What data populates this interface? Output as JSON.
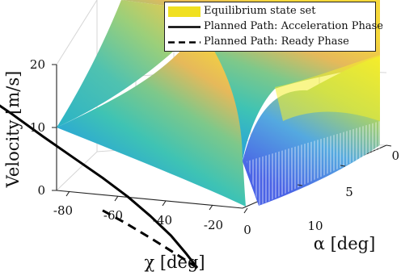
{
  "chart_data": {
    "type": "surface3d",
    "title": "",
    "xlabel": "χ [deg]",
    "ylabel": "α [deg]",
    "zlabel": "Velocity [m/s]",
    "x_ticks": [
      "-80",
      "-60",
      "-40",
      "-20",
      "0"
    ],
    "y_ticks": [
      "0",
      "5",
      "10"
    ],
    "z_ticks": [
      "0",
      "10",
      "20"
    ],
    "xlim": [
      -90,
      0
    ],
    "ylim": [
      0,
      10
    ],
    "zlim": [
      0,
      25
    ],
    "grid": true,
    "legend_position": "top-right",
    "colormap": "parula",
    "legend": [
      {
        "label": "Equilibrium state set",
        "style": "patch",
        "color": "#f0e020"
      },
      {
        "label": "Planned Path: Acceleration Phase",
        "style": "solid",
        "color": "#000000"
      },
      {
        "label": "Planned Path: Ready Phase",
        "style": "dashed",
        "color": "#000000"
      }
    ],
    "series": [
      {
        "name": "Planned Path: Acceleration Phase",
        "style": "solid",
        "x": [
          -72,
          -62,
          -52,
          -44,
          -37,
          -30,
          -25,
          -21,
          -18,
          -16,
          -15
        ],
        "y": [
          0,
          0.6,
          1.4,
          2.4,
          3.4,
          4.6,
          5.6,
          6.6,
          7.6,
          8.4,
          9.0
        ],
        "z": [
          24.5,
          21.0,
          18.0,
          15.2,
          12.8,
          10.3,
          8.2,
          6.0,
          3.8,
          1.6,
          0
        ]
      },
      {
        "name": "Planned Path: Ready Phase",
        "style": "dashed",
        "x": [
          -15,
          -11,
          -7,
          -3,
          0
        ],
        "y": [
          9.0,
          7.0,
          4.8,
          2.4,
          0
        ],
        "z": [
          0,
          0,
          0,
          0,
          0
        ]
      }
    ]
  }
}
